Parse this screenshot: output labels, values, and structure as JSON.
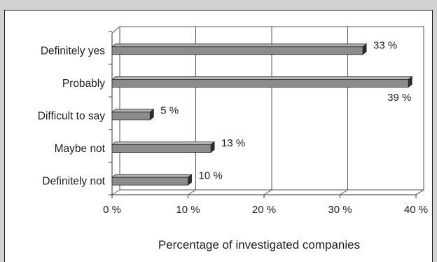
{
  "chart_data": {
    "type": "bar",
    "orientation": "horizontal",
    "title": "",
    "xlabel": "Percentage of investigated companies",
    "ylabel": "",
    "xlim": [
      0,
      40
    ],
    "x_ticks": [
      "0 %",
      "10 %",
      "20 %",
      "30 %",
      "40 %"
    ],
    "grid": "vertical",
    "legend": "none",
    "categories": [
      "Definitely yes",
      "Probably",
      "Difficult to say",
      "Maybe not",
      "Definitely not"
    ],
    "values": [
      33,
      39,
      5,
      13,
      10
    ],
    "value_labels": [
      "33 %",
      "39 %",
      "5 %",
      "13 %",
      "10 %"
    ],
    "bar_color": "#8c8c8c"
  }
}
